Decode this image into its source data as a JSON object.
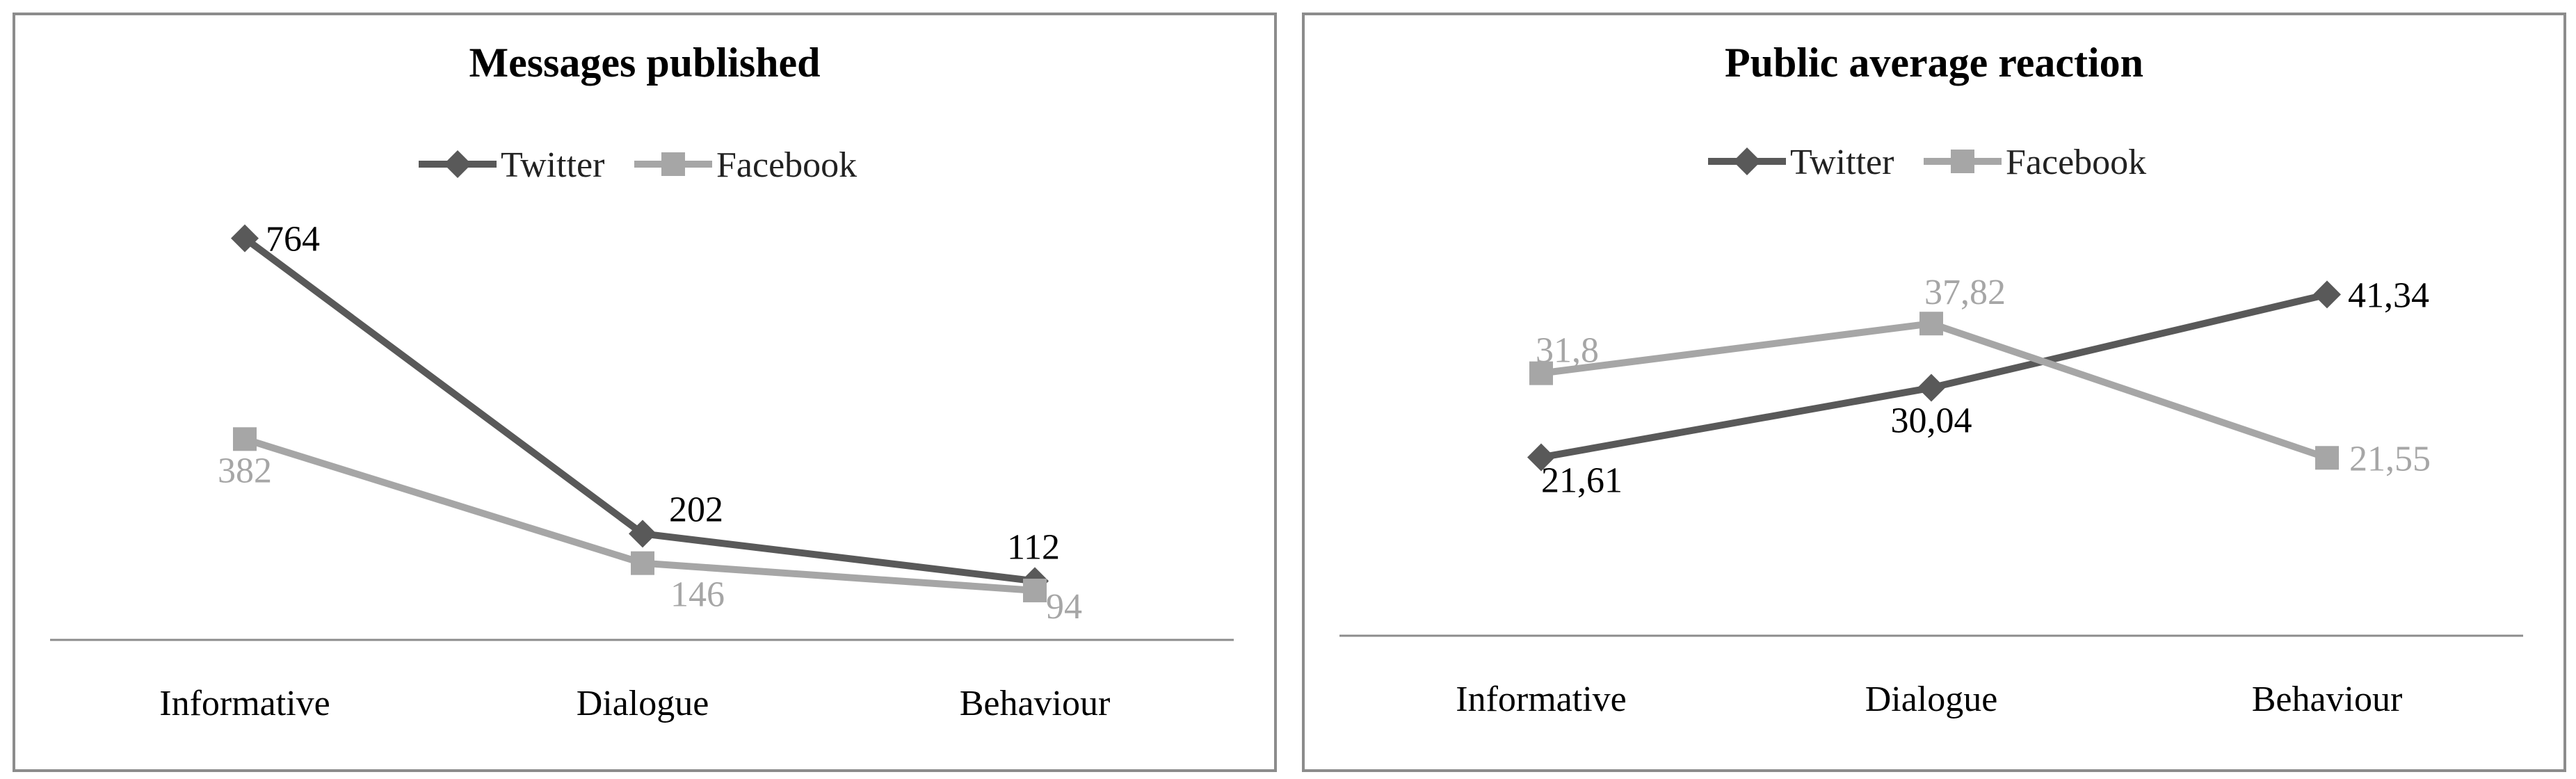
{
  "chart_data": [
    {
      "type": "line",
      "title": "Messages published",
      "categories": [
        "Informative",
        "Dialogue",
        "Behaviour"
      ],
      "series": [
        {
          "name": "Twitter",
          "values": [
            764,
            202,
            112
          ],
          "labels": [
            "764",
            "202",
            "112"
          ],
          "color": "#595959",
          "marker": "diamond"
        },
        {
          "name": "Facebook",
          "values": [
            382,
            146,
            94
          ],
          "labels": [
            "382",
            "146",
            "94"
          ],
          "color": "#a6a6a6",
          "marker": "square"
        }
      ],
      "ylim": [
        0,
        950
      ],
      "grid": false,
      "legend": "top-center",
      "xlabel": "",
      "ylabel": ""
    },
    {
      "type": "line",
      "title": "Public average reaction",
      "categories": [
        "Informative",
        "Dialogue",
        "Behaviour"
      ],
      "series": [
        {
          "name": "Twitter",
          "values": [
            21.61,
            30.04,
            41.34
          ],
          "labels": [
            "21,61",
            "30,04",
            "41,34"
          ],
          "color": "#595959",
          "marker": "diamond"
        },
        {
          "name": "Facebook",
          "values": [
            31.8,
            37.82,
            21.55
          ],
          "labels": [
            "31,8",
            "37,82",
            "21,55"
          ],
          "color": "#a6a6a6",
          "marker": "square"
        }
      ],
      "ylim": [
        0,
        60
      ],
      "grid": false,
      "legend": "top-center",
      "xlabel": "",
      "ylabel": ""
    }
  ]
}
